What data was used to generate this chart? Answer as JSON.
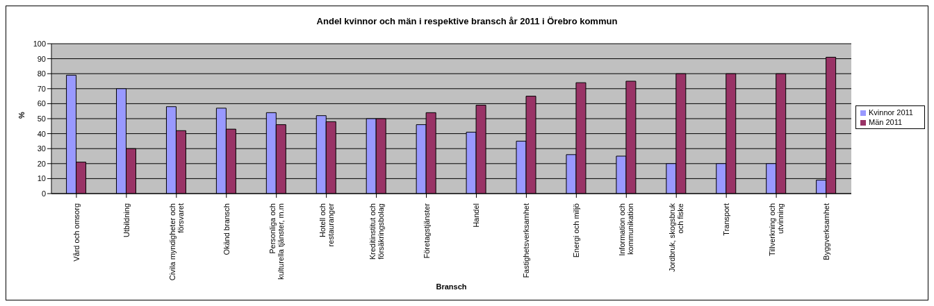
{
  "chart_data": {
    "type": "bar",
    "title": "Andel kvinnor och män i respektive bransch år 2011 i Örebro kommun",
    "xlabel": "Bransch",
    "ylabel": "%",
    "categories": [
      "Vård och omsorg",
      "Utbildning",
      "Civila myndigheter och försvaret",
      "Okänd bransch",
      "Personliga och kulturella tjänster, m.m",
      "Hotell och restauranger",
      "Kreditinstitut och försäkringsbolag",
      "Företagstjänster",
      "Handel",
      "Fastighetsverksamhet",
      "Energi och miljö",
      "Information och kommunikation",
      "Jordbruk, skogsbruk och fiske",
      "Transport",
      "Tillverkning och utvinning",
      "Byggverksamhet"
    ],
    "series": [
      {
        "name": "Kvinnor  2011",
        "color": "#9999ff",
        "values": [
          79,
          70,
          58,
          57,
          54,
          52,
          50,
          46,
          41,
          35,
          26,
          25,
          20,
          20,
          20,
          9
        ]
      },
      {
        "name": "Män 2011",
        "color": "#993366",
        "values": [
          21,
          30,
          42,
          43,
          46,
          48,
          50,
          54,
          59,
          65,
          74,
          75,
          80,
          80,
          80,
          91
        ]
      }
    ],
    "ylim": [
      0,
      100
    ],
    "yticks": [
      0,
      10,
      20,
      30,
      40,
      50,
      60,
      70,
      80,
      90,
      100
    ],
    "grid": "y",
    "legend": "right"
  }
}
